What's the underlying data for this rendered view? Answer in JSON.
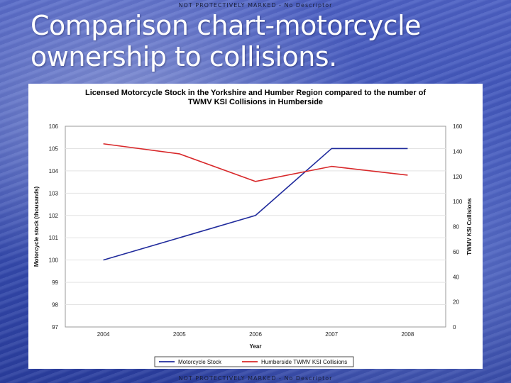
{
  "slide": {
    "marking_top": "NOT PROTECTIVELY MARKED - No Descriptor",
    "marking_bottom": "NOT PROTECTIVELY MARKED - No Descriptor",
    "title_line1": "Comparison chart-motorcycle",
    "title_line2": "ownership to collisions."
  },
  "chart_data": {
    "type": "line",
    "title_line1": "Licensed Motorcycle Stock in the Yorkshire and Humber Region compared to the number of",
    "title_line2": "TWMV KSI Collisions in Humberside",
    "xlabel": "Year",
    "ylabel_left": "Motorcycle stock (thousands)",
    "ylabel_right": "TWMV KSI Collisions",
    "categories": [
      "2004",
      "2005",
      "2006",
      "2007",
      "2008"
    ],
    "y_left": {
      "min": 97,
      "max": 106,
      "ticks": [
        "97",
        "98",
        "99",
        "100",
        "101",
        "102",
        "103",
        "104",
        "105",
        "106"
      ]
    },
    "y_right": {
      "min": 0,
      "max": 160,
      "ticks": [
        "0",
        "20",
        "40",
        "60",
        "80",
        "100",
        "120",
        "140",
        "160"
      ]
    },
    "series": [
      {
        "name": "Motorcycle Stock",
        "axis": "left",
        "color": "#1f2a9c",
        "values": [
          100,
          101,
          102,
          105,
          105
        ]
      },
      {
        "name": "Humberside TWMV KSI Collisions",
        "axis": "right",
        "color": "#d8282a",
        "values": [
          146,
          138,
          116,
          128,
          121
        ]
      }
    ],
    "grid": true,
    "legend_position": "bottom"
  }
}
